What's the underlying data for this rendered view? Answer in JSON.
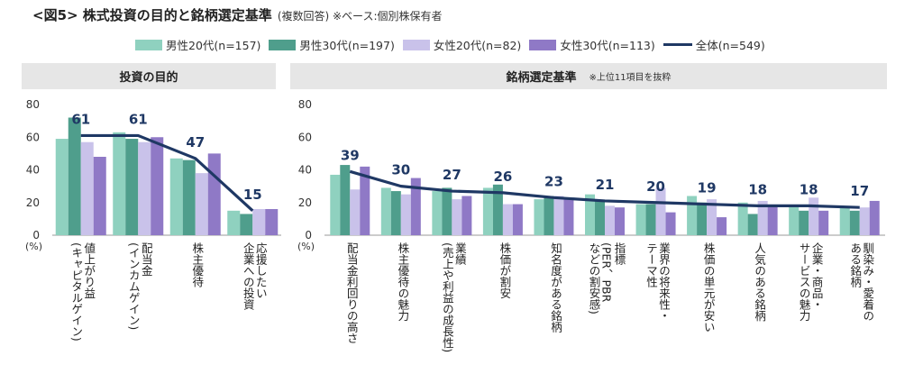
{
  "title": {
    "main": "<図5> 株式投資の目的と銘柄選定基準",
    "sub": "(複数回答) ※ベース:個別株保有者"
  },
  "legend": [
    {
      "label": "男性20代(n=157)",
      "color": "#8fd1bf",
      "kind": "bar"
    },
    {
      "label": "男性30代(n=197)",
      "color": "#4f9e8c",
      "kind": "bar"
    },
    {
      "label": "女性20代(n=82)",
      "color": "#c9c2ea",
      "kind": "bar"
    },
    {
      "label": "女性30代(n=113)",
      "color": "#8f79c6",
      "kind": "bar"
    },
    {
      "label": "全体(n=549)",
      "color": "#1f3864",
      "kind": "line"
    }
  ],
  "panels": {
    "left": {
      "header": "投資の目的"
    },
    "right": {
      "header": "銘柄選定基準",
      "note": "※上位11項目を抜粋"
    }
  },
  "chart_data": [
    {
      "type": "bar",
      "title": "投資の目的",
      "ylabel": "(%)",
      "ylim": [
        0,
        80
      ],
      "yticks": [
        0,
        20,
        40,
        60,
        80
      ],
      "categories": [
        "値上がり益\n(キャピタルゲイン)",
        "配当金\n(インカムゲイン)",
        "株主優待",
        "応援したい\n企業への投資"
      ],
      "series": [
        {
          "name": "男性20代(n=157)",
          "values": [
            59,
            63,
            47,
            15
          ]
        },
        {
          "name": "男性30代(n=197)",
          "values": [
            72,
            59,
            46,
            13
          ]
        },
        {
          "name": "女性20代(n=82)",
          "values": [
            57,
            57,
            38,
            16
          ]
        },
        {
          "name": "女性30代(n=113)",
          "values": [
            48,
            60,
            50,
            16
          ]
        }
      ],
      "line": {
        "name": "全体(n=549)",
        "values": [
          61,
          61,
          47,
          15
        ]
      }
    },
    {
      "type": "bar",
      "title": "銘柄選定基準",
      "ylabel": "(%)",
      "ylim": [
        0,
        80
      ],
      "yticks": [
        0,
        20,
        40,
        60,
        80
      ],
      "categories": [
        "配当金利回りの高さ",
        "株主優待の魅力",
        "業績\n(売上や利益の成長性)",
        "株価が割安",
        "知名度がある銘柄",
        "指標\n(PER、PBR\nなどの割安感)",
        "業界の将来性・\nテーマ性",
        "株価の単元が安い",
        "人気のある銘柄",
        "企業・商品・\nサービスの魅力",
        "馴染み・愛着の\nある銘柄"
      ],
      "series": [
        {
          "name": "男性20代(n=157)",
          "values": [
            37,
            29,
            27,
            29,
            22,
            25,
            19,
            24,
            20,
            18,
            17
          ]
        },
        {
          "name": "男性30代(n=197)",
          "values": [
            43,
            27,
            29,
            31,
            24,
            21,
            19,
            20,
            13,
            15,
            15
          ]
        },
        {
          "name": "女性20代(n=82)",
          "values": [
            28,
            25,
            22,
            19,
            24,
            18,
            29,
            22,
            21,
            23,
            17
          ]
        },
        {
          "name": "女性30代(n=113)",
          "values": [
            42,
            35,
            24,
            19,
            22,
            17,
            14,
            11,
            18,
            15,
            21
          ]
        }
      ],
      "line": {
        "name": "全体(n=549)",
        "values": [
          39,
          30,
          27,
          26,
          23,
          21,
          20,
          19,
          18,
          18,
          17
        ]
      }
    }
  ]
}
